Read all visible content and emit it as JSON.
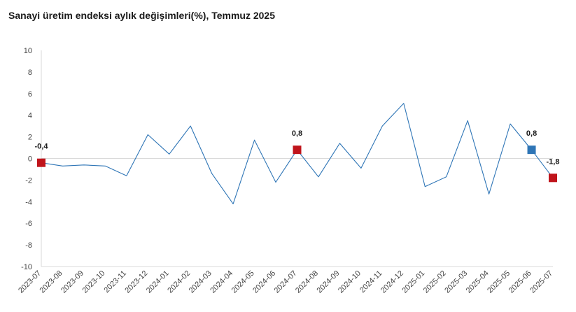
{
  "chart_data": {
    "type": "line",
    "title": "Sanayi üretim endeksi aylık değişimleri(%), Temmuz 2025",
    "xlabel": "",
    "ylabel": "",
    "ylim": [
      -10,
      10
    ],
    "yticks": [
      10,
      8,
      6,
      4,
      2,
      0,
      -2,
      -4,
      -6,
      -8,
      -10
    ],
    "grid": false,
    "categories": [
      "2023-07",
      "2023-08",
      "2023-09",
      "2023-10",
      "2023-11",
      "2023-12",
      "2024-01",
      "2024-02",
      "2024-03",
      "2024-04",
      "2024-05",
      "2024-06",
      "2024-07",
      "2024-08",
      "2024-09",
      "2024-10",
      "2024-11",
      "2024-12",
      "2025-01",
      "2025-02",
      "2025-03",
      "2025-04",
      "2025-05",
      "2025-06",
      "2025-07"
    ],
    "series": [
      {
        "values": [
          -0.4,
          -0.7,
          -0.6,
          -0.7,
          -1.6,
          2.2,
          0.4,
          3.0,
          -1.4,
          -4.2,
          1.7,
          -2.2,
          0.8,
          -1.7,
          1.4,
          -0.9,
          3.0,
          5.1,
          -2.6,
          -1.7,
          3.5,
          -3.3,
          3.2,
          0.8,
          -1.8
        ],
        "color": "#2e75b6"
      }
    ],
    "markers": [
      {
        "index": 0,
        "label": "-0,4",
        "color": "#c0141b"
      },
      {
        "index": 12,
        "label": "0,8",
        "color": "#c0141b"
      },
      {
        "index": 23,
        "label": "0,8",
        "color": "#2e75b6"
      },
      {
        "index": 24,
        "label": "-1,8",
        "color": "#c0141b"
      }
    ]
  }
}
